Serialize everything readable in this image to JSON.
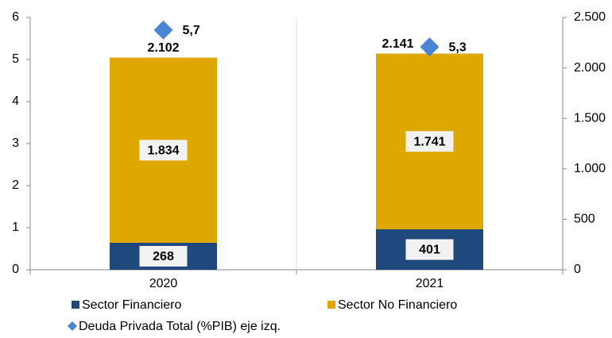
{
  "chart_data": {
    "type": "bar",
    "stacked": true,
    "categories": [
      "2020",
      "2021"
    ],
    "series": [
      {
        "name": "Sector Financiero",
        "color": "#1f497d",
        "axis": "y2",
        "values": [
          268,
          401
        ]
      },
      {
        "name": "Sector No Financiero",
        "color": "#dfa800",
        "axis": "y2",
        "values": [
          1834,
          1741
        ],
        "value_labels": [
          "1.834",
          "1.741"
        ]
      },
      {
        "name": "Deuda Privada Total (%PIB) eje izq.",
        "color": "#4a86d4",
        "type": "scatter",
        "marker": "diamond",
        "values": [
          5.7,
          5.3
        ],
        "value_labels": [
          "5,7",
          "5,3"
        ]
      }
    ],
    "totals": {
      "values": [
        2102,
        2141
      ],
      "value_labels": [
        "2.102",
        "2.141"
      ]
    },
    "ylim": [
      0,
      6
    ],
    "yticks": [
      0,
      1,
      2,
      3,
      4,
      5,
      6
    ],
    "y2lim": [
      0,
      2500
    ],
    "y2ticks": [
      0,
      {
        "value": 500,
        "label": "500"
      },
      {
        "value": 1000,
        "label": "1.000"
      },
      {
        "value": 1500,
        "label": "1.500"
      },
      {
        "value": 2000,
        "label": "2.000"
      },
      {
        "value": 2500,
        "label": "2.500"
      }
    ],
    "legend": "bottom"
  }
}
